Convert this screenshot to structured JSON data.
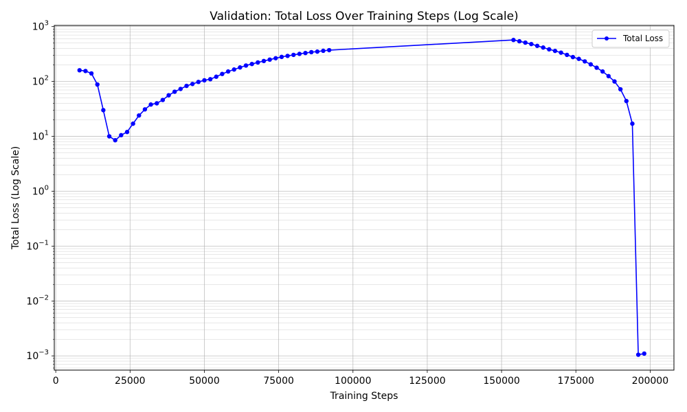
{
  "chart_data": {
    "type": "line",
    "title": "Validation: Total Loss Over Training Steps (Log Scale)",
    "xlabel": "Training Steps",
    "ylabel": "Total Loss (Log Scale)",
    "xlim": [
      -500,
      208000
    ],
    "ylim": [
      0.00055,
      1050
    ],
    "yscale": "log",
    "grid": true,
    "legend_position": "top-right",
    "x_ticks": [
      0,
      25000,
      50000,
      75000,
      100000,
      125000,
      150000,
      175000,
      200000
    ],
    "x_tick_labels": [
      "0",
      "25000",
      "50000",
      "75000",
      "100000",
      "125000",
      "150000",
      "175000",
      "200000"
    ],
    "y_ticks": [
      {
        "value": 0.001,
        "base": "10",
        "exp": "−3"
      },
      {
        "value": 0.01,
        "base": "10",
        "exp": "−2"
      },
      {
        "value": 0.1,
        "base": "10",
        "exp": "−1"
      },
      {
        "value": 1,
        "base": "10",
        "exp": "0"
      },
      {
        "value": 10,
        "base": "10",
        "exp": "1"
      },
      {
        "value": 100,
        "base": "10",
        "exp": "2"
      },
      {
        "value": 1000,
        "base": "10",
        "exp": "3"
      }
    ],
    "series": [
      {
        "name": "Total Loss",
        "color": "#0000ff",
        "marker": "circle",
        "x": [
          8000,
          10000,
          12000,
          14000,
          16000,
          18000,
          20000,
          22000,
          24000,
          26000,
          28000,
          30000,
          32000,
          34000,
          36000,
          38000,
          40000,
          42000,
          44000,
          46000,
          48000,
          50000,
          52000,
          54000,
          56000,
          58000,
          60000,
          62000,
          64000,
          66000,
          68000,
          70000,
          72000,
          74000,
          76000,
          78000,
          80000,
          82000,
          84000,
          86000,
          88000,
          90000,
          92000,
          154000,
          156000,
          158000,
          160000,
          162000,
          164000,
          166000,
          168000,
          170000,
          172000,
          174000,
          176000,
          178000,
          180000,
          182000,
          184000,
          186000,
          188000,
          190000,
          192000,
          194000,
          196000,
          198000
        ],
        "y": [
          160,
          155,
          140,
          88,
          30,
          10,
          8.5,
          10.5,
          12,
          17,
          24,
          31,
          38,
          40,
          46,
          56,
          65,
          73,
          83,
          90,
          98,
          105,
          110,
          122,
          137,
          152,
          165,
          180,
          195,
          208,
          222,
          236,
          250,
          265,
          280,
          292,
          305,
          318,
          330,
          342,
          350,
          362,
          372,
          570,
          540,
          510,
          480,
          445,
          415,
          385,
          360,
          335,
          305,
          278,
          258,
          232,
          205,
          178,
          152,
          125,
          100,
          72,
          44,
          17,
          0.00105,
          0.0011
        ]
      }
    ]
  }
}
